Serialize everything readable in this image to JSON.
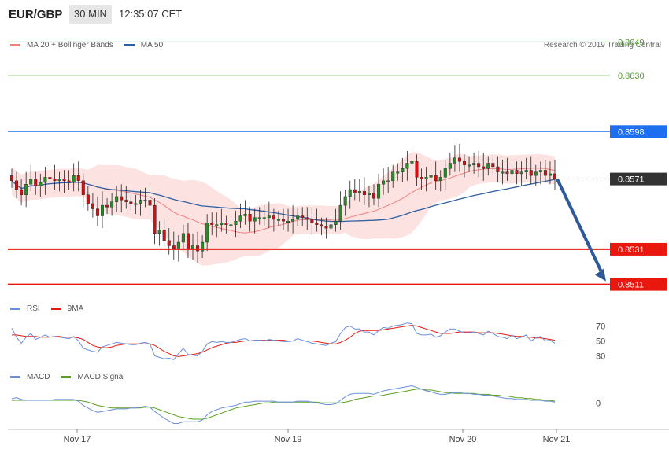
{
  "header": {
    "symbol": "EUR/GBP",
    "interval": "30 MIN",
    "time": "12:35:07 CET"
  },
  "legend_main": [
    {
      "label": "MA 20 + Bollinger Bands",
      "color": "#f08080"
    },
    {
      "label": "MA 50",
      "color": "#2f5fa0"
    }
  ],
  "research": "Research © 2019 Trading Central",
  "levels": [
    {
      "value": "0.8649",
      "kind": "resistance-line",
      "color": "#7cc060"
    },
    {
      "value": "0.8630",
      "kind": "resistance-line",
      "color": "#7cc060"
    },
    {
      "value": "0.8598",
      "kind": "pivot-label",
      "color": "#1e6ef0"
    },
    {
      "value": "0.8571",
      "kind": "current-price",
      "color": "#333333"
    },
    {
      "value": "0.8531",
      "kind": "support-label",
      "color": "#e8180f"
    },
    {
      "value": "0.8511",
      "kind": "support-label",
      "color": "#e8180f"
    }
  ],
  "legend_rsi": [
    {
      "label": "RSI",
      "color": "#6a8fd8"
    },
    {
      "label": "9MA",
      "color": "#e8180f"
    }
  ],
  "legend_macd": [
    {
      "label": "MACD",
      "color": "#6a8fd8"
    },
    {
      "label": "MACD Signal",
      "color": "#5aa020"
    }
  ],
  "rsi_ticks": [
    "70",
    "50",
    "30"
  ],
  "macd_ticks": [
    "0"
  ],
  "x_ticks": [
    "Nov 17",
    "Nov 19",
    "Nov 20",
    "Nov 21"
  ],
  "chart_data": {
    "type": "candlestick",
    "y_range": [
      0.8505,
      0.8655
    ],
    "closes": [
      0.857,
      0.8565,
      0.8562,
      0.8568,
      0.8571,
      0.8567,
      0.8569,
      0.8572,
      0.8571,
      0.857,
      0.8571,
      0.857,
      0.8569,
      0.8573,
      0.857,
      0.8562,
      0.8557,
      0.8554,
      0.855,
      0.8556,
      0.8555,
      0.8558,
      0.8561,
      0.8559,
      0.8558,
      0.8557,
      0.8557,
      0.8559,
      0.8559,
      0.8556,
      0.854,
      0.8542,
      0.8536,
      0.8533,
      0.8531,
      0.8535,
      0.854,
      0.8531,
      0.8533,
      0.853,
      0.8535,
      0.8546,
      0.8545,
      0.8545,
      0.8546,
      0.8545,
      0.8545,
      0.8547,
      0.855,
      0.8551,
      0.8547,
      0.8549,
      0.8549,
      0.8549,
      0.855,
      0.8548,
      0.8548,
      0.8547,
      0.8547,
      0.8548,
      0.855,
      0.8549,
      0.8548,
      0.8546,
      0.8545,
      0.8544,
      0.8543,
      0.8545,
      0.8547,
      0.8556,
      0.8561,
      0.8565,
      0.8563,
      0.8564,
      0.8562,
      0.8563,
      0.856,
      0.8568,
      0.857,
      0.857,
      0.8575,
      0.8575,
      0.8577,
      0.858,
      0.8581,
      0.8572,
      0.8571,
      0.8572,
      0.8573,
      0.857,
      0.8572,
      0.8577,
      0.858,
      0.8583,
      0.8581,
      0.8579,
      0.8579,
      0.858,
      0.8578,
      0.8577,
      0.858,
      0.8578,
      0.8575,
      0.8575,
      0.8574,
      0.8576,
      0.8574,
      0.8575,
      0.8576,
      0.8573,
      0.8575,
      0.8576,
      0.8573,
      0.8574,
      0.8571
    ],
    "rsi": [
      67,
      55,
      47,
      55,
      60,
      52,
      55,
      58,
      55,
      56,
      55,
      54,
      53,
      56,
      50,
      40,
      38,
      36,
      35,
      42,
      44,
      46,
      48,
      47,
      46,
      45,
      45,
      47,
      48,
      46,
      30,
      28,
      26,
      27,
      25,
      33,
      40,
      32,
      31,
      30,
      36,
      46,
      49,
      48,
      49,
      48,
      48,
      50,
      52,
      53,
      50,
      51,
      51,
      50,
      52,
      51,
      50,
      49,
      49,
      50,
      53,
      51,
      49,
      47,
      46,
      45,
      44,
      47,
      49,
      60,
      68,
      70,
      66,
      66,
      62,
      62,
      58,
      64,
      68,
      67,
      70,
      71,
      72,
      74,
      73,
      60,
      58,
      58,
      59,
      55,
      57,
      62,
      66,
      66,
      63,
      61,
      61,
      62,
      60,
      58,
      63,
      60,
      56,
      55,
      53,
      58,
      53,
      55,
      58,
      50,
      54,
      56,
      50,
      51,
      47
    ],
    "rsi_ma": [
      58,
      58,
      57,
      56,
      56,
      56,
      55,
      55,
      55,
      56,
      56,
      55,
      55,
      55,
      54,
      52,
      48,
      44,
      42,
      41,
      41,
      42,
      44,
      45,
      46,
      46,
      46,
      46,
      46,
      46,
      44,
      40,
      36,
      33,
      30,
      29,
      30,
      31,
      32,
      33,
      35,
      38,
      41,
      43,
      45,
      47,
      48,
      48,
      49,
      50,
      50,
      51,
      51,
      51,
      51,
      51,
      51,
      51,
      50,
      50,
      50,
      50,
      50,
      50,
      49,
      48,
      47,
      46,
      46,
      48,
      51,
      55,
      60,
      63,
      64,
      64,
      64,
      64,
      65,
      66,
      67,
      68,
      69,
      70,
      71,
      70,
      68,
      66,
      64,
      62,
      60,
      60,
      60,
      61,
      62,
      62,
      62,
      62,
      61,
      61,
      61,
      61,
      60,
      59,
      58,
      57,
      56,
      56,
      55,
      55,
      54,
      54,
      53,
      52,
      51
    ],
    "macd": [
      5,
      6,
      4,
      3,
      3,
      3,
      3,
      3,
      3,
      4,
      4,
      4,
      4,
      4,
      2,
      -3,
      -6,
      -9,
      -11,
      -10,
      -9,
      -8,
      -7,
      -7,
      -7,
      -6,
      -6,
      -5,
      -4,
      -5,
      -10,
      -14,
      -18,
      -21,
      -24,
      -24,
      -22,
      -22,
      -22,
      -22,
      -20,
      -14,
      -10,
      -8,
      -6,
      -5,
      -4,
      -3,
      -1,
      1,
      1,
      2,
      2,
      2,
      2,
      2,
      1,
      1,
      1,
      1,
      2,
      2,
      2,
      1,
      0,
      -1,
      -2,
      -2,
      -1,
      3,
      7,
      10,
      11,
      11,
      11,
      11,
      10,
      12,
      14,
      15,
      16,
      17,
      18,
      19,
      20,
      18,
      16,
      14,
      13,
      11,
      10,
      10,
      11,
      12,
      12,
      11,
      11,
      10,
      10,
      9,
      9,
      8,
      7,
      6,
      5,
      5,
      4,
      4,
      4,
      3,
      3,
      3,
      2,
      2,
      1
    ],
    "macd_signal": [
      3,
      3,
      3,
      3,
      3,
      3,
      3,
      3,
      3,
      3,
      3,
      3,
      3,
      3,
      3,
      2,
      1,
      -1,
      -3,
      -4,
      -5,
      -6,
      -6,
      -6,
      -6,
      -6,
      -6,
      -6,
      -5,
      -5,
      -6,
      -8,
      -10,
      -12,
      -14,
      -16,
      -17,
      -18,
      -19,
      -19,
      -19,
      -18,
      -16,
      -14,
      -12,
      -10,
      -8,
      -6,
      -5,
      -4,
      -3,
      -2,
      -1,
      0,
      0,
      1,
      1,
      1,
      1,
      1,
      1,
      1,
      1,
      1,
      1,
      0,
      0,
      0,
      0,
      0,
      1,
      2,
      4,
      5,
      6,
      7,
      8,
      8,
      9,
      10,
      11,
      12,
      13,
      14,
      15,
      16,
      16,
      15,
      15,
      14,
      13,
      12,
      12,
      11,
      11,
      11,
      11,
      11,
      10,
      10,
      10,
      9,
      9,
      8,
      8,
      7,
      6,
      6,
      5,
      5,
      4,
      4,
      3,
      3,
      2
    ]
  }
}
